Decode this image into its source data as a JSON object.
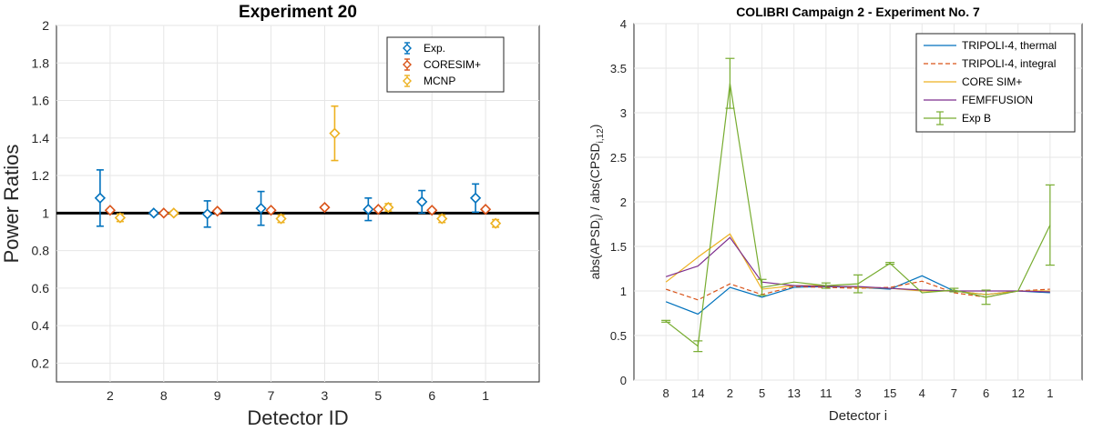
{
  "chart_data": [
    {
      "type": "scatter",
      "title": "Experiment 20",
      "xlabel": "Detector ID",
      "ylabel": "Power Ratios",
      "categories": [
        "2",
        "8",
        "9",
        "7",
        "3",
        "5",
        "6",
        "1"
      ],
      "ylim": [
        0.1,
        2.0
      ],
      "yticks": [
        "0.2",
        "0.4",
        "0.6",
        "0.8",
        "1",
        "1.2",
        "1.4",
        "1.6",
        "1.8",
        "2"
      ],
      "reference_line": 1.0,
      "grid": true,
      "legend_position": "top-right",
      "series": [
        {
          "name": "Exp.",
          "color": "#0072BD",
          "values": [
            1.08,
            1.0,
            0.995,
            1.025,
            null,
            1.02,
            1.06,
            1.08
          ],
          "errors": [
            0.15,
            0.01,
            0.07,
            0.09,
            null,
            0.06,
            0.06,
            0.075
          ]
        },
        {
          "name": "CORESIM+",
          "color": "#D95319",
          "values": [
            1.015,
            1.0,
            1.01,
            1.015,
            1.03,
            1.02,
            1.015,
            1.02
          ],
          "errors": [
            0,
            0,
            0,
            0,
            0,
            0,
            0,
            0
          ]
        },
        {
          "name": "MCNP",
          "color": "#EDB120",
          "values": [
            0.975,
            1.0,
            null,
            0.97,
            1.425,
            1.03,
            0.97,
            0.945
          ],
          "errors": [
            0.02,
            0.01,
            null,
            0.02,
            0.145,
            0.02,
            0.02,
            0.02
          ]
        }
      ]
    },
    {
      "type": "line",
      "title": "COLIBRI Campaign 2 - Experiment No. 7",
      "xlabel": "Detector i",
      "ylabel": "abs(APSD",
      "ylabel_sub1": "i",
      "ylabel_mid": ") / abs(CPSD",
      "ylabel_sub2": "i,12",
      "ylabel_end": ")",
      "categories": [
        "8",
        "14",
        "2",
        "5",
        "13",
        "11",
        "3",
        "15",
        "4",
        "7",
        "6",
        "12",
        "1"
      ],
      "ylim": [
        0,
        4
      ],
      "yticks": [
        "0",
        "0.5",
        "1",
        "1.5",
        "2",
        "2.5",
        "3",
        "3.5",
        "4"
      ],
      "grid": true,
      "legend_position": "top-right",
      "series": [
        {
          "name": "TRIPOLI-4, thermal",
          "color": "#0072BD",
          "style": "solid",
          "values": [
            0.88,
            0.74,
            1.04,
            0.93,
            1.04,
            1.05,
            1.04,
            1.02,
            1.17,
            1.0,
            0.96,
            1.0,
            0.98
          ]
        },
        {
          "name": "TRIPOLI-4, integral",
          "color": "#D95319",
          "style": "dashed",
          "values": [
            1.02,
            0.9,
            1.08,
            0.96,
            1.05,
            1.04,
            1.03,
            1.04,
            1.11,
            0.98,
            0.93,
            1.0,
            1.02
          ]
        },
        {
          "name": "CORE SIM+",
          "color": "#EDB120",
          "style": "solid",
          "values": [
            1.1,
            1.38,
            1.64,
            1.02,
            1.06,
            1.06,
            1.04,
            1.03,
            1.0,
            1.0,
            0.96,
            1.0,
            1.0
          ]
        },
        {
          "name": "FEMFFUSION",
          "color": "#7E2F8E",
          "style": "solid",
          "values": [
            1.16,
            1.28,
            1.6,
            1.1,
            1.06,
            1.05,
            1.05,
            1.03,
            1.01,
            1.0,
            1.0,
            1.0,
            0.99
          ]
        },
        {
          "name": "Exp B",
          "color": "#77AC30",
          "style": "solid",
          "values": [
            0.66,
            0.38,
            3.33,
            1.04,
            1.1,
            1.06,
            1.08,
            1.31,
            0.98,
            1.01,
            0.93,
            1.0,
            1.74
          ],
          "errors": [
            0.01,
            0.06,
            0.28,
            0.09,
            0.0,
            0.03,
            0.1,
            0.01,
            0.0,
            0.02,
            0.08,
            0.0,
            0.45
          ]
        }
      ]
    }
  ]
}
